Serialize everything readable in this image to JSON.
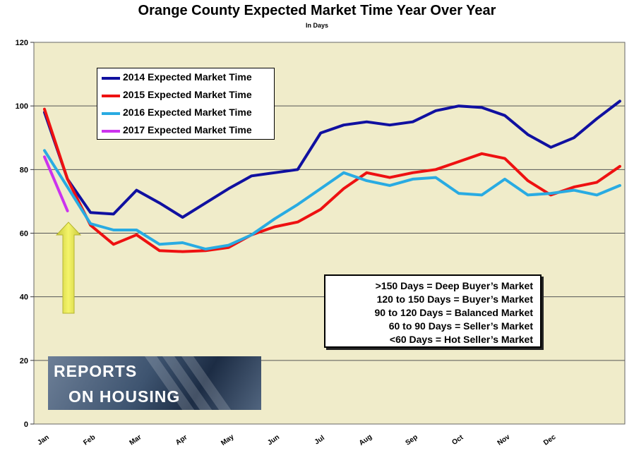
{
  "chart_data": {
    "type": "line",
    "title": "Orange County Expected Market Time Year Over Year",
    "subtitle": "In Days",
    "ylim": [
      0,
      120
    ],
    "yticks": [
      0,
      20,
      40,
      60,
      80,
      100,
      120
    ],
    "months": [
      "Jan",
      "Feb",
      "Mar",
      "Apr",
      "May",
      "Jun",
      "Jul",
      "Aug",
      "Sep",
      "Oct",
      "Nov",
      "Dec"
    ],
    "x_points": 26,
    "grid": true,
    "legend": "top-left",
    "series": [
      {
        "name": "2014 Expected Market Time",
        "color": "#1010a0",
        "values": [
          98,
          77,
          66.5,
          66,
          73.5,
          69.5,
          65,
          69.5,
          74,
          78,
          79,
          80,
          91.5,
          94,
          95,
          94,
          95,
          98.5,
          100,
          99.5,
          97,
          91,
          87,
          90,
          96,
          101.5
        ]
      },
      {
        "name": "2015 Expected Market Time",
        "color": "#ee1111",
        "values": [
          99,
          77,
          62.5,
          56.5,
          59.5,
          54.5,
          54.2,
          54.5,
          55.5,
          59.5,
          62,
          63.5,
          67.5,
          74,
          79,
          77.5,
          79,
          80,
          82.5,
          85,
          83.5,
          76.5,
          72,
          74.5,
          76,
          81
        ]
      },
      {
        "name": "2016 Expected Market Time",
        "color": "#29abe2",
        "values": [
          86,
          74.5,
          63,
          61,
          61,
          56.5,
          57,
          55,
          56.2,
          59.5,
          64.5,
          69,
          74,
          79,
          76.5,
          75,
          77,
          77.5,
          72.5,
          72,
          77,
          72,
          72.5,
          73.5,
          72,
          75
        ]
      },
      {
        "name": "2017 Expected Market Time",
        "color": "#cc33ee",
        "values": [
          84,
          67
        ]
      }
    ],
    "annotations": [
      ">150 Days = Deep Buyer’s Market",
      "120 to 150 Days = Buyer’s Market",
      "90 to 120 Days = Balanced Market",
      "60 to 90 Days = Seller’s Market",
      "<60 Days = Hot Seller’s Market"
    ],
    "arrow_color": "#e8e84a"
  },
  "logo": {
    "line1": "REPORTS",
    "line2": "ON HOUSING"
  }
}
